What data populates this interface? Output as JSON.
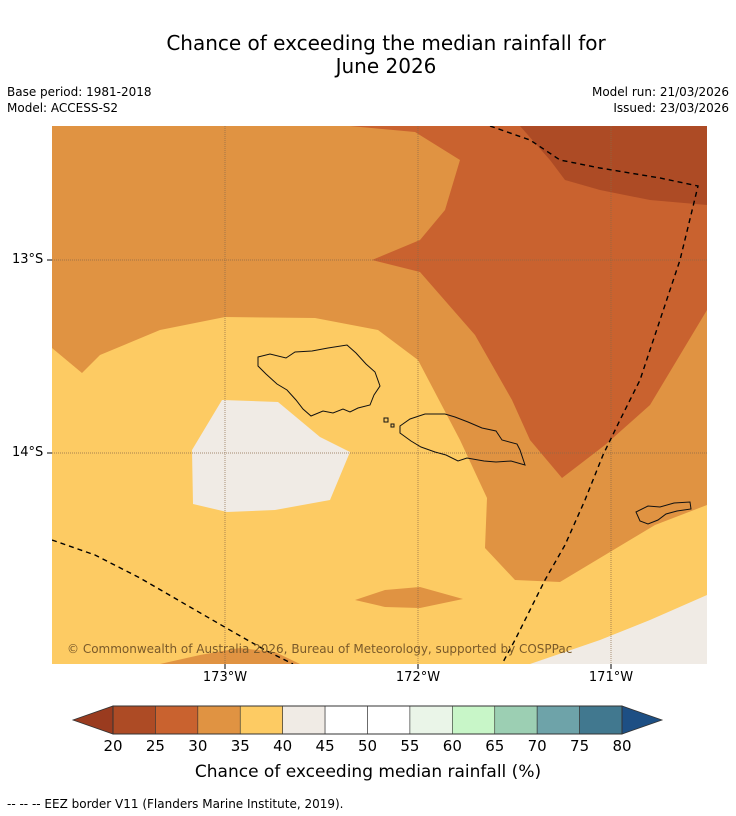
{
  "title_line1": "Chance of exceeding the median rainfall for",
  "title_line2": "June 2026",
  "base_period": "Base period: 1981-2018",
  "model": "Model: ACCESS-S2",
  "model_run": "Model run: 21/03/2026",
  "issued": "Issued: 23/03/2026",
  "map": {
    "lat_labels": [
      "13°S",
      "14°S"
    ],
    "lon_labels": [
      "173°W",
      "172°W",
      "171°W"
    ],
    "copyright": "© Commonwealth of Australia 2026, Bureau of Meteorology, supported by COSPPac",
    "categories": {
      "c25_30": "25–30%",
      "c30_35": "30–35%",
      "c35_40": "35–40%",
      "c40_45": "40–45%"
    }
  },
  "colorbar": {
    "ticks": [
      "20",
      "25",
      "30",
      "35",
      "40",
      "45",
      "50",
      "55",
      "60",
      "65",
      "70",
      "75",
      "80"
    ],
    "colors": [
      "#ad4b25",
      "#c9622f",
      "#e09342",
      "#fdcb63",
      "#f0ebe5",
      "#ffffff",
      "#ffffff",
      "#eaf5e8",
      "#c8f6c8",
      "#9ccfb3",
      "#6ea3a9",
      "#41788f"
    ],
    "under_color": "#9a3b1f",
    "over_color": "#1d4f84",
    "label": "Chance of exceeding median rainfall (%)"
  },
  "footnote": "--  --  -- EEZ border V11 (Flanders Marine Institute, 2019)."
}
